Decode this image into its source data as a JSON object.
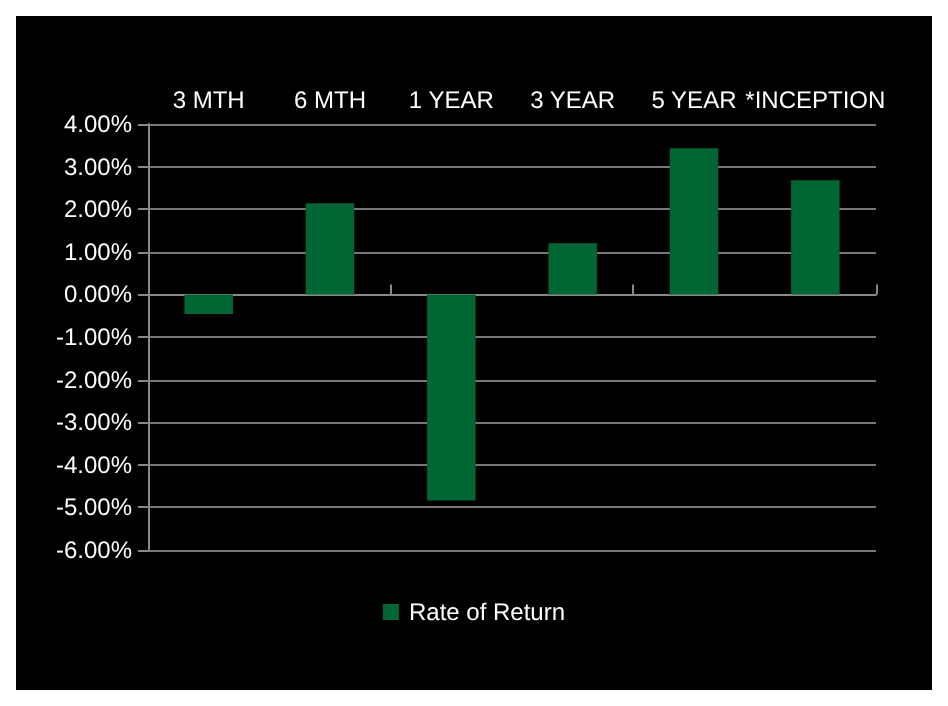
{
  "chart_data": {
    "type": "bar",
    "categories": [
      "3 MTH",
      "6 MTH",
      "1 YEAR",
      "3 YEAR",
      "5 YEAR",
      "*INCEPTION"
    ],
    "series": [
      {
        "name": "Rate of Return",
        "color": "#006633",
        "values": [
          -0.46,
          2.14,
          -4.84,
          1.2,
          3.43,
          2.68
        ]
      }
    ],
    "ylim": [
      -6,
      4
    ],
    "yticks": [
      {
        "value": -6,
        "label": "-6.00%"
      },
      {
        "value": -5,
        "label": "-5.00%"
      },
      {
        "value": -4,
        "label": "-4.00%"
      },
      {
        "value": -3,
        "label": "-3.00%"
      },
      {
        "value": -2,
        "label": "-2.00%"
      },
      {
        "value": -1,
        "label": "-1.00%"
      },
      {
        "value": 0,
        "label": "0.00%"
      },
      {
        "value": 1,
        "label": "1.00%"
      },
      {
        "value": 2,
        "label": "2.00%"
      },
      {
        "value": 3,
        "label": "3.00%"
      },
      {
        "value": 4,
        "label": "4.00%"
      }
    ],
    "grid": "y",
    "legend": "bottom"
  }
}
